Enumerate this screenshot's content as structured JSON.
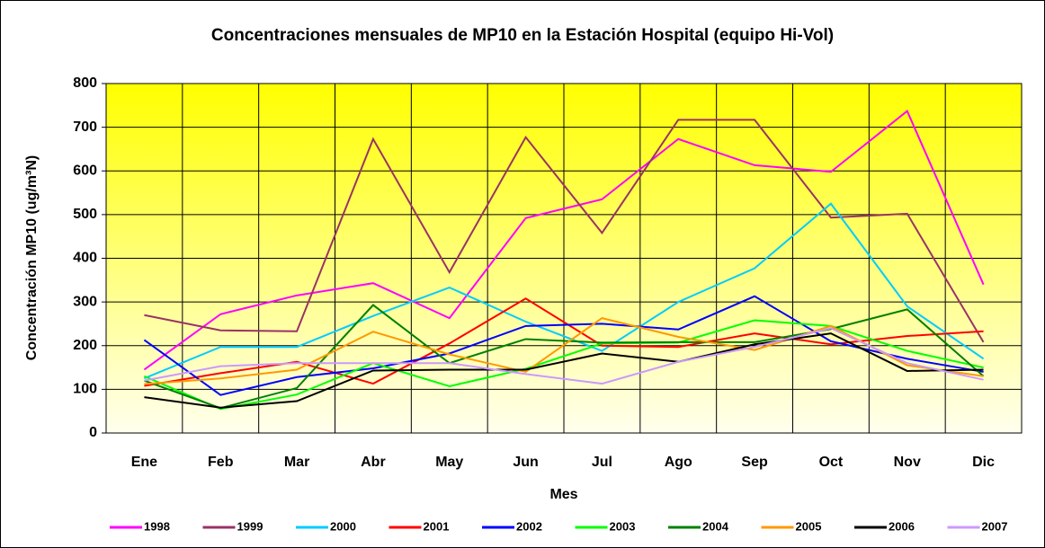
{
  "chart_data": {
    "type": "line",
    "title": "Concentraciones mensuales de MP10 en la Estación Hospital (equipo Hi-Vol)",
    "x_label": "Mes",
    "y_label": "Concentración MP10 (ug/m³N)",
    "categories": [
      "Ene",
      "Feb",
      "Mar",
      "Abr",
      "May",
      "Jun",
      "Jul",
      "Ago",
      "Sep",
      "Oct",
      "Nov",
      "Dic"
    ],
    "ylim": [
      0,
      800
    ],
    "yticks": [
      0,
      100,
      200,
      300,
      400,
      500,
      600,
      700,
      800
    ],
    "grid": true,
    "legend": "bottom",
    "series": [
      {
        "name": "1998",
        "color": "#ff00ff",
        "values": [
          145,
          272,
          315,
          343,
          263,
          492,
          535,
          673,
          613,
          598,
          737,
          340
        ]
      },
      {
        "name": "1999",
        "color": "#993366",
        "values": [
          270,
          235,
          233,
          673,
          368,
          677,
          458,
          717,
          717,
          493,
          502,
          208
        ]
      },
      {
        "name": "2000",
        "color": "#00ccff",
        "values": [
          125,
          197,
          197,
          268,
          333,
          255,
          188,
          300,
          377,
          525,
          290,
          170
        ]
      },
      {
        "name": "2001",
        "color": "#ff0000",
        "values": [
          108,
          137,
          163,
          113,
          205,
          308,
          200,
          197,
          228,
          203,
          222,
          233
        ]
      },
      {
        "name": "2002",
        "color": "#0000ff",
        "values": [
          213,
          87,
          128,
          148,
          182,
          245,
          250,
          237,
          313,
          210,
          170,
          140
        ]
      },
      {
        "name": "2003",
        "color": "#00ff00",
        "values": [
          130,
          55,
          88,
          160,
          107,
          147,
          205,
          207,
          258,
          245,
          188,
          150
        ]
      },
      {
        "name": "2004",
        "color": "#008000",
        "values": [
          120,
          57,
          103,
          293,
          160,
          215,
          207,
          208,
          208,
          238,
          283,
          130
        ]
      },
      {
        "name": "2005",
        "color": "#ff9900",
        "values": [
          112,
          125,
          145,
          232,
          180,
          140,
          263,
          220,
          190,
          245,
          155,
          130
        ]
      },
      {
        "name": "2006",
        "color": "#000000",
        "values": [
          82,
          58,
          73,
          143,
          145,
          145,
          182,
          163,
          203,
          228,
          142,
          145
        ]
      },
      {
        "name": "2007",
        "color": "#cc99ff",
        "values": [
          120,
          153,
          160,
          160,
          160,
          135,
          113,
          163,
          197,
          240,
          160,
          122
        ]
      }
    ]
  }
}
